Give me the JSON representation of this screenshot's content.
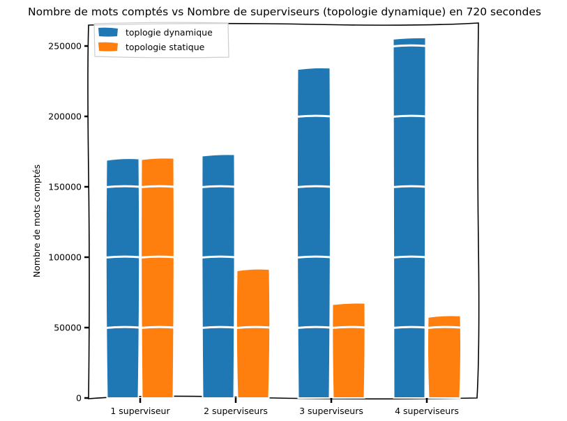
{
  "chart_data": {
    "type": "bar",
    "title": "Nombre de mots comptés vs Nombre de superviseurs (topologie dynamique) en 720 secondes",
    "xlabel": "",
    "ylabel": "Nombre de mots comptés",
    "categories": [
      "1 superviseur",
      "2 superviseurs",
      "3 superviseurs",
      "4 superviseurs"
    ],
    "series": [
      {
        "name": "toplogie dynamique",
        "color": "#1f77b4",
        "values": [
          170000,
          173000,
          234500,
          256000
        ]
      },
      {
        "name": "topologie statique",
        "color": "#ff7f0e",
        "values": [
          170500,
          91500,
          67500,
          58500
        ]
      }
    ],
    "ylim": [
      0,
      250000
    ],
    "yticks": [
      "0",
      "50000",
      "100000",
      "150000",
      "200000",
      "250000"
    ],
    "grid": false,
    "legend_position": "top-left",
    "style": "xkcd"
  }
}
